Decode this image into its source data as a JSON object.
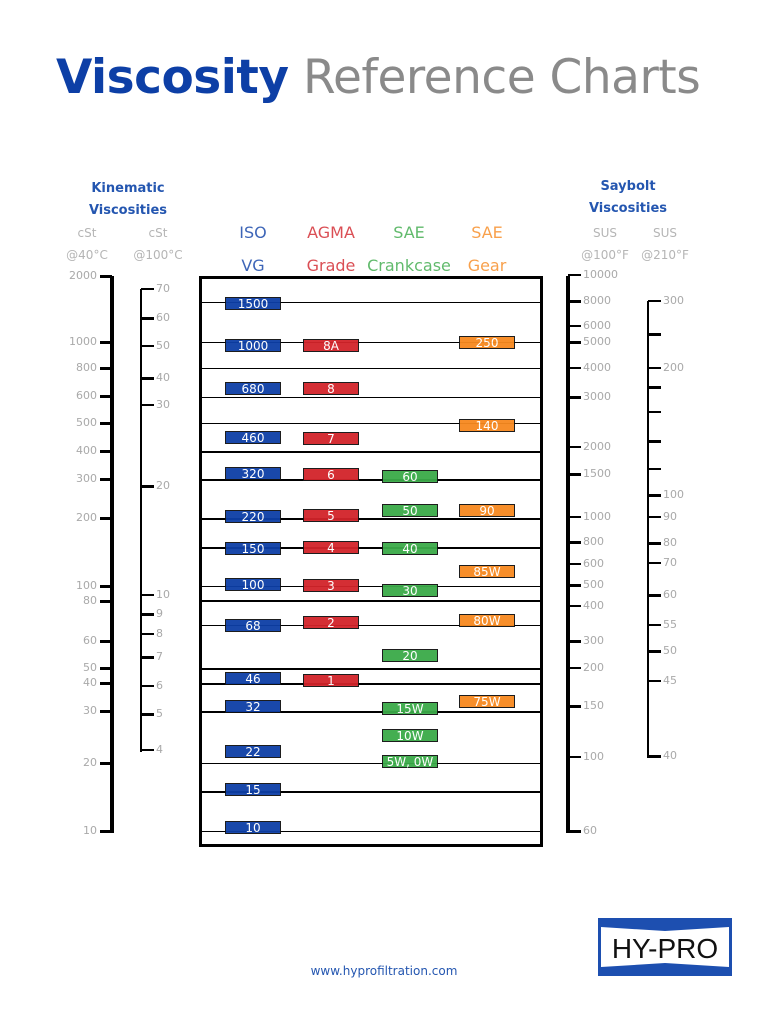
{
  "title": {
    "bold": "Viscosity",
    "rest": "Reference Charts"
  },
  "footer": {
    "url": "www.hyprofiltration.com",
    "logo_text": "HY-PRO"
  },
  "colors": {
    "iso": "#0d3fa6",
    "agma": "#d2232a",
    "sae_crankcase": "#3aaa48",
    "sae_gear": "#f7891f"
  },
  "chart_data": {
    "type": "table",
    "title": "Viscosity Reference Charts",
    "left_header": [
      "Kinematic",
      "Viscosities"
    ],
    "right_header": [
      "Saybolt",
      "Viscosities"
    ],
    "axes": [
      {
        "unit": [
          "cSt",
          "@40°C"
        ],
        "ticks": [
          "2000",
          "1000",
          "800",
          "600",
          "500",
          "400",
          "300",
          "200",
          "100",
          "80",
          "60",
          "50",
          "40",
          "30",
          "20",
          "10"
        ]
      },
      {
        "unit": [
          "cSt",
          "@100°C"
        ],
        "ticks": [
          "70",
          "60",
          "50",
          "40",
          "30",
          "20",
          "10",
          "9",
          "8",
          "7",
          "6",
          "5",
          "4"
        ]
      },
      {
        "unit": [
          "SUS",
          "@100°F"
        ],
        "ticks": [
          "10000",
          "8000",
          "6000",
          "5000",
          "4000",
          "3000",
          "2000",
          "1500",
          "1000",
          "800",
          "600",
          "500",
          "400",
          "300",
          "200",
          "150",
          "100",
          "60"
        ]
      },
      {
        "unit": [
          "SUS",
          "@210°F"
        ],
        "ticks": [
          "300",
          "",
          "200",
          "",
          "",
          "",
          "",
          "100",
          "90",
          "80",
          "70",
          "60",
          "55",
          "50",
          "45",
          "40"
        ]
      }
    ],
    "columns": [
      {
        "name": [
          "ISO",
          "VG"
        ],
        "color": "#0d3fa6",
        "grades": [
          "1500",
          "1000",
          "680",
          "460",
          "320",
          "220",
          "150",
          "100",
          "68",
          "46",
          "32",
          "22",
          "15",
          "10"
        ]
      },
      {
        "name": [
          "AGMA",
          "Grade"
        ],
        "color": "#d2232a",
        "grades": [
          "8A",
          "8",
          "7",
          "6",
          "5",
          "4",
          "3",
          "2",
          "1"
        ]
      },
      {
        "name": [
          "SAE",
          "Crankcase"
        ],
        "color": "#3aaa48",
        "grades": [
          "60",
          "50",
          "40",
          "30",
          "20",
          "15W",
          "10W",
          "5W, 0W"
        ]
      },
      {
        "name": [
          "SAE",
          "Gear"
        ],
        "color": "#f7891f",
        "grades": [
          "250",
          "140",
          "90",
          "85W",
          "80W",
          "75W"
        ]
      }
    ]
  }
}
